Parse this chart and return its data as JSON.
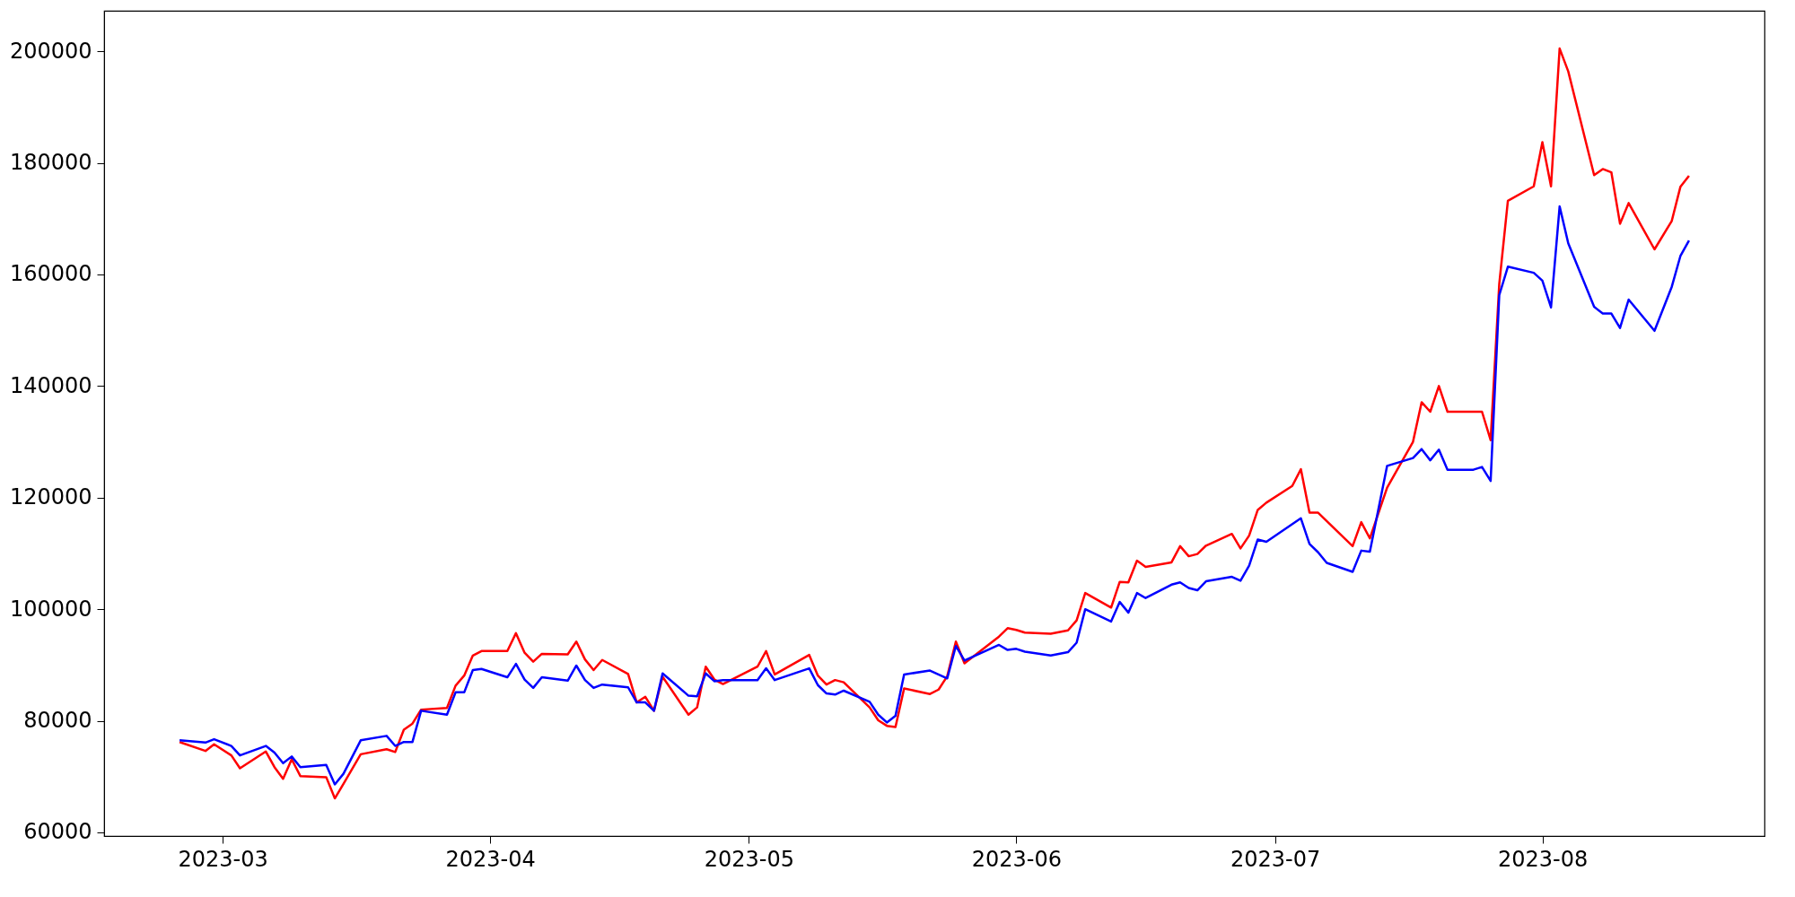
{
  "chart_data": {
    "type": "line",
    "xlim": [
      "2023-02-15T06:00",
      "2023-08-26T18:00"
    ],
    "xticks": [
      "2023-03",
      "2023-04",
      "2023-05",
      "2023-06",
      "2023-07",
      "2023-08"
    ],
    "ylim": [
      59350,
      207270
    ],
    "yticks": [
      60000,
      80000,
      100000,
      120000,
      140000,
      160000,
      180000,
      200000
    ],
    "grid": false,
    "series": [
      {
        "color": "#ff0000",
        "x": [
          "2023-02-24",
          "2023-02-27",
          "2023-02-28",
          "2023-03-02",
          "2023-03-03",
          "2023-03-06",
          "2023-03-07",
          "2023-03-08",
          "2023-03-09",
          "2023-03-10",
          "2023-03-13",
          "2023-03-14",
          "2023-03-15",
          "2023-03-17",
          "2023-03-20",
          "2023-03-21",
          "2023-03-22",
          "2023-03-23",
          "2023-03-24",
          "2023-03-27",
          "2023-03-28",
          "2023-03-29",
          "2023-03-30",
          "2023-03-31",
          "2023-04-03",
          "2023-04-04",
          "2023-04-05",
          "2023-04-06",
          "2023-04-07",
          "2023-04-10",
          "2023-04-11",
          "2023-04-12",
          "2023-04-13",
          "2023-04-14",
          "2023-04-17",
          "2023-04-18",
          "2023-04-19",
          "2023-04-20",
          "2023-04-21",
          "2023-04-24",
          "2023-04-25",
          "2023-04-26",
          "2023-04-27",
          "2023-04-28",
          "2023-05-02",
          "2023-05-03",
          "2023-05-04",
          "2023-05-08",
          "2023-05-09",
          "2023-05-10",
          "2023-05-11",
          "2023-05-12",
          "2023-05-15",
          "2023-05-16",
          "2023-05-17",
          "2023-05-18",
          "2023-05-19",
          "2023-05-22",
          "2023-05-23",
          "2023-05-24",
          "2023-05-25",
          "2023-05-26",
          "2023-05-30",
          "2023-05-31",
          "2023-06-01",
          "2023-06-02",
          "2023-06-05",
          "2023-06-07",
          "2023-06-08",
          "2023-06-09",
          "2023-06-12",
          "2023-06-13",
          "2023-06-14",
          "2023-06-15",
          "2023-06-16",
          "2023-06-19",
          "2023-06-20",
          "2023-06-21",
          "2023-06-22",
          "2023-06-23",
          "2023-06-26",
          "2023-06-27",
          "2023-06-28",
          "2023-06-29",
          "2023-06-30",
          "2023-07-03",
          "2023-07-04",
          "2023-07-05",
          "2023-07-06",
          "2023-07-10",
          "2023-07-11",
          "2023-07-12",
          "2023-07-14",
          "2023-07-17",
          "2023-07-18",
          "2023-07-19",
          "2023-07-20",
          "2023-07-21",
          "2023-07-24",
          "2023-07-25",
          "2023-07-26",
          "2023-07-27",
          "2023-07-28",
          "2023-07-31",
          "2023-08-01",
          "2023-08-02",
          "2023-08-03",
          "2023-08-04",
          "2023-08-07",
          "2023-08-08",
          "2023-08-09",
          "2023-08-10",
          "2023-08-11",
          "2023-08-14",
          "2023-08-16",
          "2023-08-17",
          "2023-08-18"
        ],
        "values": [
          76200,
          74600,
          75800,
          73800,
          71500,
          74500,
          71700,
          69600,
          73100,
          70100,
          69900,
          66100,
          68700,
          74000,
          74900,
          74400,
          78400,
          79500,
          82000,
          82300,
          86300,
          88100,
          91700,
          92500,
          92500,
          95700,
          92200,
          90600,
          92000,
          91900,
          94200,
          91000,
          89100,
          90900,
          88400,
          83300,
          84300,
          81800,
          87900,
          81100,
          82400,
          89700,
          87400,
          86600,
          89700,
          92500,
          88300,
          91800,
          88100,
          86500,
          87300,
          86900,
          82400,
          80100,
          79100,
          78900,
          85800,
          84800,
          85600,
          88000,
          94200,
          90300,
          95100,
          96600,
          96300,
          95800,
          95600,
          96200,
          98000,
          102900,
          100300,
          104900,
          104800,
          108700,
          107600,
          108400,
          111300,
          109500,
          109900,
          111400,
          113500,
          110900,
          113200,
          117800,
          119100,
          122100,
          125100,
          117300,
          117300,
          111300,
          115600,
          112700,
          121800,
          130000,
          137100,
          135400,
          140000,
          135400,
          135400,
          135400,
          130300,
          158300,
          173200,
          175800,
          183700,
          175800,
          200500,
          196400,
          177800,
          178900,
          178300,
          169100,
          172800,
          164500,
          169600,
          175700,
          177700
        ]
      },
      {
        "color": "#0000ff",
        "x": [
          "2023-02-24",
          "2023-02-27",
          "2023-02-28",
          "2023-03-02",
          "2023-03-03",
          "2023-03-06",
          "2023-03-07",
          "2023-03-08",
          "2023-03-09",
          "2023-03-10",
          "2023-03-13",
          "2023-03-14",
          "2023-03-15",
          "2023-03-17",
          "2023-03-20",
          "2023-03-21",
          "2023-03-22",
          "2023-03-23",
          "2023-03-24",
          "2023-03-27",
          "2023-03-28",
          "2023-03-29",
          "2023-03-30",
          "2023-03-31",
          "2023-04-03",
          "2023-04-04",
          "2023-04-05",
          "2023-04-06",
          "2023-04-07",
          "2023-04-10",
          "2023-04-11",
          "2023-04-12",
          "2023-04-13",
          "2023-04-14",
          "2023-04-17",
          "2023-04-18",
          "2023-04-19",
          "2023-04-20",
          "2023-04-21",
          "2023-04-24",
          "2023-04-25",
          "2023-04-26",
          "2023-04-27",
          "2023-04-28",
          "2023-05-02",
          "2023-05-03",
          "2023-05-04",
          "2023-05-08",
          "2023-05-09",
          "2023-05-10",
          "2023-05-11",
          "2023-05-12",
          "2023-05-15",
          "2023-05-16",
          "2023-05-17",
          "2023-05-18",
          "2023-05-19",
          "2023-05-22",
          "2023-05-24",
          "2023-05-25",
          "2023-05-26",
          "2023-05-30",
          "2023-05-31",
          "2023-06-01",
          "2023-06-02",
          "2023-06-05",
          "2023-06-07",
          "2023-06-08",
          "2023-06-09",
          "2023-06-12",
          "2023-06-13",
          "2023-06-14",
          "2023-06-15",
          "2023-06-16",
          "2023-06-19",
          "2023-06-20",
          "2023-06-21",
          "2023-06-22",
          "2023-06-23",
          "2023-06-26",
          "2023-06-27",
          "2023-06-28",
          "2023-06-29",
          "2023-06-30",
          "2023-07-04",
          "2023-07-05",
          "2023-07-06",
          "2023-07-07",
          "2023-07-10",
          "2023-07-11",
          "2023-07-12",
          "2023-07-14",
          "2023-07-17",
          "2023-07-18",
          "2023-07-19",
          "2023-07-20",
          "2023-07-21",
          "2023-07-24",
          "2023-07-25",
          "2023-07-26",
          "2023-07-27",
          "2023-07-28",
          "2023-07-31",
          "2023-08-01",
          "2023-08-02",
          "2023-08-03",
          "2023-08-04",
          "2023-08-07",
          "2023-08-08",
          "2023-08-09",
          "2023-08-10",
          "2023-08-11",
          "2023-08-14",
          "2023-08-16",
          "2023-08-17",
          "2023-08-18"
        ],
        "values": [
          76500,
          76100,
          76700,
          75500,
          73800,
          75500,
          74300,
          72400,
          73600,
          71700,
          72100,
          68600,
          70500,
          76500,
          77300,
          75500,
          76200,
          76200,
          81800,
          81100,
          85100,
          85100,
          89100,
          89300,
          87800,
          90200,
          87400,
          85900,
          87800,
          87200,
          89900,
          87300,
          85900,
          86500,
          86000,
          83300,
          83300,
          81800,
          88500,
          84500,
          84400,
          88500,
          87100,
          87300,
          87300,
          89400,
          87300,
          89400,
          86400,
          84900,
          84700,
          85400,
          83400,
          81100,
          79700,
          80900,
          88300,
          89000,
          87600,
          93400,
          90800,
          93600,
          92700,
          92900,
          92400,
          91700,
          92300,
          94000,
          100000,
          97800,
          101300,
          99400,
          102900,
          102000,
          104400,
          104800,
          103800,
          103400,
          105000,
          105800,
          105100,
          107800,
          112500,
          112100,
          116300,
          111700,
          110200,
          108300,
          106700,
          110500,
          110300,
          125700,
          127100,
          128700,
          126700,
          128600,
          125000,
          125000,
          125500,
          123000,
          156300,
          161400,
          160300,
          158900,
          154100,
          172200,
          165600,
          154200,
          153000,
          153000,
          150400,
          155500,
          149900,
          157800,
          163300,
          166100
        ]
      }
    ]
  }
}
